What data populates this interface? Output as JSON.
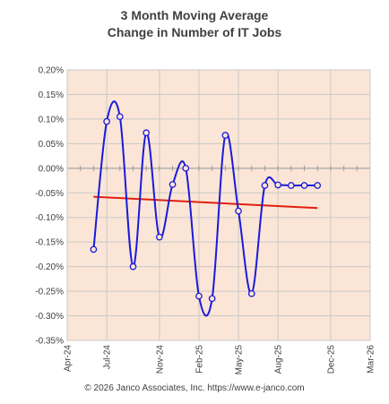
{
  "chart_data": {
    "type": "line",
    "title": "3 Month Moving Average",
    "subtitle": "Change in Number of IT Jobs",
    "footer": "© 2026 Janco Associates, Inc. https://www.e-janco.com",
    "xlabel": "",
    "ylabel": "",
    "x_ticks": [
      "Apr-24",
      "Jul-24",
      "Nov-24",
      "Feb-25",
      "May-25",
      "Aug-25",
      "Dec-25",
      "Mar-26"
    ],
    "xlim": [
      "2024-04",
      "2026-03"
    ],
    "y_ticks": [
      "0.20%",
      "0.15%",
      "0.10%",
      "0.05%",
      "0.00%",
      "-0.05%",
      "-0.10%",
      "-0.15%",
      "-0.20%",
      "-0.25%",
      "-0.30%",
      "-0.35%"
    ],
    "ylim": [
      -0.35,
      0.2
    ],
    "grid": true,
    "series": [
      {
        "color": "#1a1adb",
        "points": [
          {
            "x": "2024-06",
            "y": -0.165
          },
          {
            "x": "2024-07",
            "y": 0.095
          },
          {
            "x": "2024-08",
            "y": 0.105
          },
          {
            "x": "2024-09",
            "y": -0.2
          },
          {
            "x": "2024-10",
            "y": 0.072
          },
          {
            "x": "2024-11",
            "y": -0.14
          },
          {
            "x": "2024-12",
            "y": -0.033
          },
          {
            "x": "2025-01",
            "y": 0.0
          },
          {
            "x": "2025-02",
            "y": -0.26
          },
          {
            "x": "2025-03",
            "y": -0.265
          },
          {
            "x": "2025-04",
            "y": 0.067
          },
          {
            "x": "2025-05",
            "y": -0.087
          },
          {
            "x": "2025-06",
            "y": -0.255
          },
          {
            "x": "2025-07",
            "y": -0.035
          },
          {
            "x": "2025-08",
            "y": -0.034
          },
          {
            "x": "2025-09",
            "y": -0.035
          },
          {
            "x": "2025-10",
            "y": -0.035
          },
          {
            "x": "2025-11",
            "y": -0.035
          }
        ]
      },
      {
        "color": "#e02010",
        "type": "trendline",
        "points": [
          {
            "x": "2024-06",
            "y": -0.058
          },
          {
            "x": "2025-11",
            "y": -0.081
          }
        ]
      }
    ],
    "colors": {
      "plot_background": "#fbe5d6",
      "grid": "#c9c9c9",
      "zero_line": "#9a9a9a"
    }
  }
}
